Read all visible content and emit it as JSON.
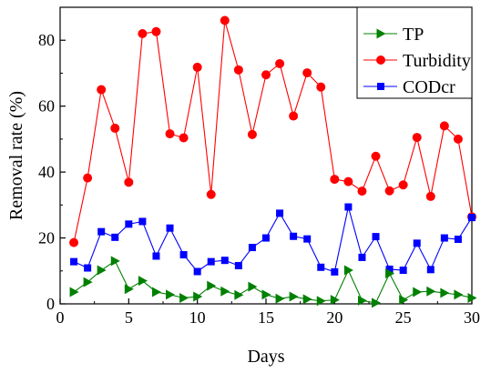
{
  "chart_data": {
    "type": "line",
    "xlabel": "Days",
    "ylabel": "Removal rate (%)",
    "xlim": [
      0,
      30
    ],
    "ylim": [
      0,
      90
    ],
    "xticks": [
      0,
      5,
      10,
      15,
      20,
      25,
      30
    ],
    "yticks": [
      0,
      20,
      40,
      60,
      80
    ],
    "grid": false,
    "legend_position": "top-right",
    "x": [
      1,
      2,
      3,
      4,
      5,
      6,
      7,
      8,
      9,
      10,
      11,
      12,
      13,
      14,
      15,
      16,
      17,
      18,
      19,
      20,
      21,
      22,
      23,
      24,
      25,
      26,
      27,
      28,
      29,
      30
    ],
    "series": [
      {
        "name": "TP",
        "color": "#008000",
        "marker": "triangle-right",
        "values": [
          3.6,
          6.6,
          10.2,
          13.0,
          4.5,
          7.0,
          3.6,
          2.8,
          1.8,
          2.2,
          5.5,
          3.8,
          2.7,
          5.2,
          2.8,
          1.6,
          2.2,
          1.4,
          0.9,
          1.2,
          10.2,
          1.0,
          0.3,
          9.2,
          1.2,
          3.6,
          3.8,
          3.3,
          2.8,
          1.8
        ]
      },
      {
        "name": "Turbidity",
        "color": "#ff0000",
        "marker": "circle",
        "values": [
          18.6,
          38.2,
          65.0,
          53.3,
          36.9,
          82.0,
          82.6,
          51.6,
          50.4,
          71.8,
          33.2,
          86.0,
          71.0,
          51.4,
          69.5,
          72.9,
          57.0,
          70.1,
          65.8,
          37.8,
          37.1,
          34.2,
          44.8,
          34.3,
          36.1,
          50.5,
          32.6,
          54.0,
          50.0,
          26.4
        ]
      },
      {
        "name": "CODcr",
        "color": "#0000ff",
        "marker": "square",
        "values": [
          12.8,
          10.9,
          21.9,
          20.2,
          24.2,
          25.0,
          14.5,
          23.0,
          14.9,
          9.8,
          12.8,
          13.2,
          11.6,
          17.1,
          20.0,
          27.5,
          20.5,
          19.7,
          11.1,
          9.7,
          29.4,
          14.1,
          20.4,
          10.5,
          10.2,
          18.4,
          10.4,
          20.0,
          19.6,
          26.2
        ]
      }
    ]
  }
}
